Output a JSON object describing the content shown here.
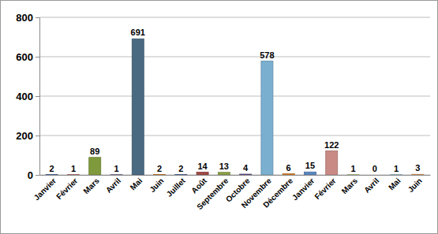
{
  "chart_data": {
    "type": "bar",
    "categories": [
      "Janvier",
      "Février",
      "Mars",
      "Avril",
      "Mai",
      "Juin",
      "Juillet",
      "Août",
      "Septembre",
      "Octobre",
      "Novembre",
      "Décembre",
      "Janvier",
      "Février",
      "Mars",
      "Avril",
      "Mai",
      "Juin"
    ],
    "values": [
      2,
      1,
      89,
      1,
      691,
      2,
      2,
      14,
      13,
      4,
      578,
      6,
      15,
      122,
      1,
      0,
      1,
      3
    ],
    "colors": [
      "#4f6fa8",
      "#a04a44",
      "#7f9a3c",
      "#6b4f8a",
      "#4a6a82",
      "#d9802b",
      "#4f6fa8",
      "#a04a44",
      "#8aa046",
      "#6b4f8a",
      "#7aafcf",
      "#d9802b",
      "#5a86c0",
      "#c98a85",
      "#9fb86a",
      "#8e7aa8",
      "#7fb0c8",
      "#e5a060"
    ],
    "ylim": [
      0,
      800
    ],
    "yticks": [
      0,
      200,
      400,
      600,
      800
    ],
    "grid": true,
    "data_labels": true
  }
}
